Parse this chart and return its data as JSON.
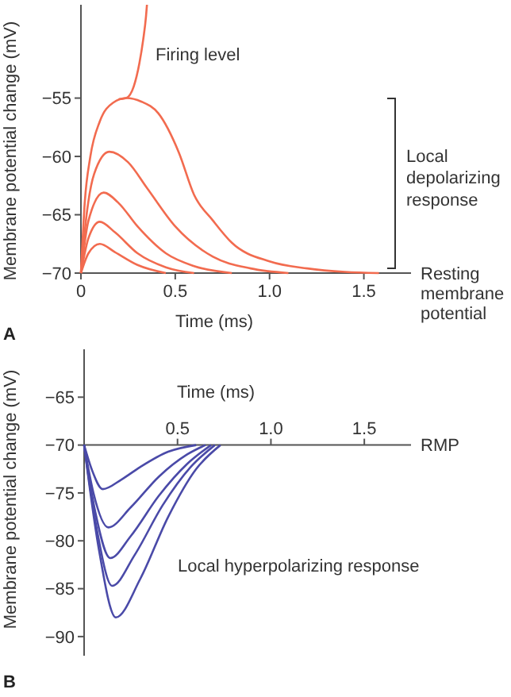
{
  "chart_data": [
    {
      "type": "line",
      "xlabel": "Time (ms)",
      "ylabel": "Membrane potential change (mV)",
      "xlim": [
        0,
        1.75
      ],
      "ylim": [
        -70,
        -47
      ],
      "xticks": [
        0,
        0.5,
        {
          "value": 1,
          "label": "1.0"
        },
        1.5
      ],
      "yticks": [
        {
          "value": -70,
          "label": "−70"
        },
        {
          "value": -65,
          "label": "−65"
        },
        {
          "value": -60,
          "label": "−60"
        },
        {
          "value": -55,
          "label": "−55"
        }
      ],
      "series": [
        {
          "color": "#f26b4f",
          "x": [
            0.2,
            0.24,
            0.28,
            0.31,
            0.33,
            0.345,
            0.35
          ],
          "values": [
            -55.1,
            -55,
            -54,
            -52,
            -50,
            -48,
            -47
          ]
        },
        {
          "color": "#f26b4f",
          "x": [
            0,
            0.02,
            0.05,
            0.1,
            0.17,
            0.24,
            0.32,
            0.41,
            0.52,
            0.6,
            0.7,
            0.8,
            1.0,
            1.2,
            1.4,
            1.58
          ],
          "values": [
            -70,
            -64,
            -60,
            -57,
            -55.4,
            -55,
            -55.3,
            -56.3,
            -59.7,
            -63.3,
            -65.5,
            -67.4,
            -69,
            -69.6,
            -69.9,
            -70
          ]
        },
        {
          "color": "#f26b4f",
          "x": [
            0,
            0.03,
            0.07,
            0.15,
            0.25,
            0.35,
            0.5,
            0.7,
            0.9,
            1.1
          ],
          "values": [
            -70,
            -65,
            -61.5,
            -59.6,
            -60.5,
            -62.7,
            -66,
            -68.6,
            -69.6,
            -70
          ]
        },
        {
          "color": "#f26b4f",
          "x": [
            0,
            0.04,
            0.12,
            0.2,
            0.3,
            0.45,
            0.6,
            0.8
          ],
          "values": [
            -70,
            -65.5,
            -63.1,
            -64,
            -66,
            -68.3,
            -69.4,
            -70
          ]
        },
        {
          "color": "#f26b4f",
          "x": [
            0,
            0.04,
            0.1,
            0.18,
            0.3,
            0.45,
            0.6
          ],
          "values": [
            -70,
            -67,
            -65.6,
            -66.5,
            -68.3,
            -69.5,
            -70
          ]
        },
        {
          "color": "#f26b4f",
          "x": [
            0,
            0.04,
            0.1,
            0.18,
            0.3,
            0.45
          ],
          "values": [
            -70,
            -68.3,
            -67.5,
            -68.2,
            -69.3,
            -70
          ]
        }
      ],
      "annotations": [
        "Firing level",
        "Local depolarizing response",
        "Resting membrane potential",
        "A"
      ]
    },
    {
      "type": "line",
      "xlabel": "Time (ms)",
      "ylabel": "Membrane potential change (mV)",
      "xlim": [
        0,
        1.75
      ],
      "ylim": [
        -92,
        -60
      ],
      "xticks": [
        0.5,
        {
          "value": 1,
          "label": "1.0"
        },
        1.5
      ],
      "yticks": [
        {
          "value": -90,
          "label": "−90"
        },
        {
          "value": -85,
          "label": "−85"
        },
        {
          "value": -80,
          "label": "−80"
        },
        {
          "value": -75,
          "label": "−75"
        },
        {
          "value": -70,
          "label": "−70"
        },
        {
          "value": -65,
          "label": "−65"
        }
      ],
      "series": [
        {
          "color": "#4a4aa8",
          "x": [
            0,
            0.04,
            0.1,
            0.2,
            0.3,
            0.45,
            0.6
          ],
          "values": [
            -70,
            -72.5,
            -74.6,
            -73.6,
            -72.3,
            -70.7,
            -70
          ]
        },
        {
          "color": "#4a4aa8",
          "x": [
            0,
            0.05,
            0.13,
            0.25,
            0.4,
            0.55,
            0.65
          ],
          "values": [
            -70,
            -75,
            -78.6,
            -76.5,
            -73.3,
            -71,
            -70
          ]
        },
        {
          "color": "#4a4aa8",
          "x": [
            0,
            0.06,
            0.14,
            0.25,
            0.4,
            0.55,
            0.68
          ],
          "values": [
            -70,
            -77,
            -81.8,
            -79.5,
            -75.3,
            -72,
            -70
          ]
        },
        {
          "color": "#4a4aa8",
          "x": [
            0,
            0.07,
            0.15,
            0.27,
            0.42,
            0.57,
            0.7
          ],
          "values": [
            -70,
            -79,
            -84.7,
            -81.5,
            -76.3,
            -72.3,
            -70
          ]
        },
        {
          "color": "#4a4aa8",
          "x": [
            0,
            0.08,
            0.17,
            0.3,
            0.45,
            0.6,
            0.73
          ],
          "values": [
            -70,
            -81,
            -88,
            -84,
            -77.5,
            -72.5,
            -70
          ]
        }
      ],
      "annotations": [
        "Local hyperpolarizing response",
        "RMP",
        "B"
      ]
    }
  ]
}
